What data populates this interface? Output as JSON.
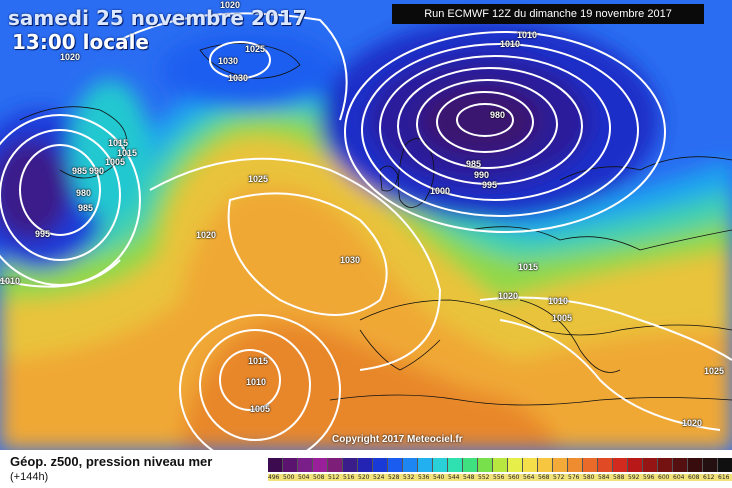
{
  "map": {
    "title_date": "samedi 25 novembre 2017",
    "title_time": "13:00 locale",
    "run_info": "Run ECMWF 12Z du dimanche 19 novembre 2017",
    "copyright": "Copyright 2017 Meteociel.fr",
    "isobar_labels": [
      "1020",
      "1025",
      "1030",
      "1030",
      "1020",
      "1010",
      "1005",
      "980",
      "1015",
      "1015",
      "985",
      "990",
      "980",
      "985",
      "995",
      "1025",
      "1020",
      "1030",
      "985",
      "990",
      "995",
      "1000",
      "1015",
      "1020",
      "1010",
      "1005",
      "1010",
      "1010",
      "1015",
      "1010",
      "1005",
      "1025",
      "1020"
    ]
  },
  "footer": {
    "title": "Géop. z500, pression niveau mer",
    "subtitle": "(+144h)"
  },
  "legend": {
    "labels": [
      "496",
      "500",
      "504",
      "508",
      "512",
      "516",
      "520",
      "524",
      "528",
      "532",
      "536",
      "540",
      "544",
      "548",
      "552",
      "556",
      "560",
      "564",
      "568",
      "572",
      "576",
      "580",
      "584",
      "588",
      "592",
      "596",
      "600",
      "604",
      "608",
      "612",
      "616"
    ],
    "colors": [
      "#3c0a4e",
      "#5a1470",
      "#7a1e8a",
      "#9a1f9a",
      "#7d1e78",
      "#3a1c8a",
      "#2424b4",
      "#1a3ad8",
      "#1b5cf0",
      "#1e86f2",
      "#22b0f0",
      "#2ad0d8",
      "#2fe0b0",
      "#3ee080",
      "#78e04a",
      "#b8e840",
      "#e6ee4a",
      "#f4de4a",
      "#f6c640",
      "#f4aa38",
      "#f08c30",
      "#ea6a2a",
      "#e04a24",
      "#d22a1e",
      "#b81818",
      "#951414",
      "#741212",
      "#541010",
      "#380c0c",
      "#241010",
      "#101010"
    ]
  }
}
